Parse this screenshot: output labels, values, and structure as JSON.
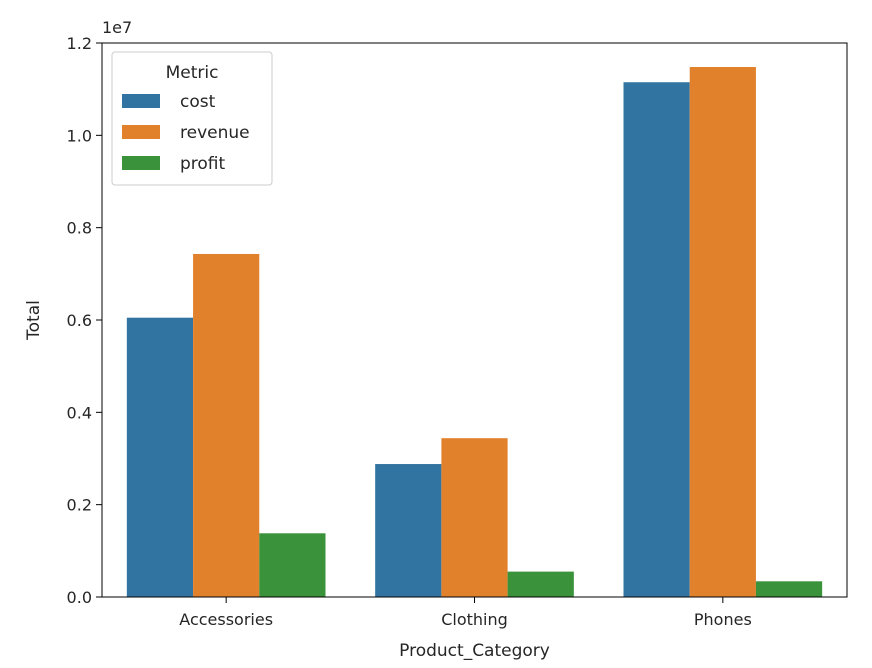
{
  "chart_data": {
    "type": "bar",
    "xlabel": "Product_Category",
    "ylabel": "Total",
    "ylim": [
      0,
      12000000
    ],
    "y_offset_label": "1e7",
    "y_ticks": [
      {
        "value": 0,
        "label": "0.0"
      },
      {
        "value": 2000000,
        "label": "0.2"
      },
      {
        "value": 4000000,
        "label": "0.4"
      },
      {
        "value": 6000000,
        "label": "0.6"
      },
      {
        "value": 8000000,
        "label": "0.8"
      },
      {
        "value": 10000000,
        "label": "1.0"
      },
      {
        "value": 12000000,
        "label": "1.2"
      }
    ],
    "categories": [
      "Accessories",
      "Clothing",
      "Phones"
    ],
    "series": [
      {
        "name": "cost",
        "color": "#3274a1",
        "values": [
          6050000,
          2880000,
          11150000
        ]
      },
      {
        "name": "revenue",
        "color": "#e1812c",
        "values": [
          7430000,
          3440000,
          11480000
        ]
      },
      {
        "name": "profit",
        "color": "#3a923a",
        "values": [
          1380000,
          550000,
          340000
        ]
      }
    ],
    "legend": {
      "title": "Metric",
      "position": "top-left"
    },
    "grid": false
  }
}
